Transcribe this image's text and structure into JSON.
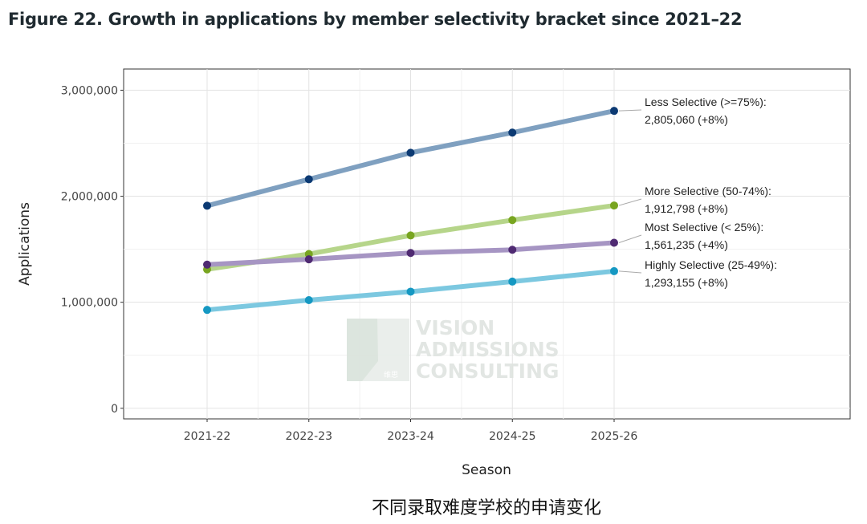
{
  "figure_title": "Figure 22. Growth in applications by member selectivity bracket since 2021–22",
  "caption": "不同录取难度学校的申请变化",
  "watermark": {
    "lines": [
      "VISION",
      "ADMISSIONS",
      "CONSULTING"
    ],
    "logo_text": "维思"
  },
  "chart_data": {
    "type": "line",
    "xlabel": "Season",
    "ylabel": "Applications",
    "categories": [
      "2021-22",
      "2022-23",
      "2023-24",
      "2024-25",
      "2025-26"
    ],
    "ylim": [
      -100000,
      3200000
    ],
    "yticks": [
      0,
      1000000,
      2000000,
      3000000
    ],
    "ytick_labels": [
      "0",
      "1,000,000",
      "2,000,000",
      "3,000,000"
    ],
    "grid": true,
    "series": [
      {
        "name": "Less Selective (>=75%)",
        "values": [
          1910000,
          2160000,
          2410000,
          2600000,
          2805060
        ],
        "line_color": "#7fa0c0",
        "point_color": "#0c3a73",
        "label_lines": [
          "Less Selective (>=75%):",
          "2,805,060 (+8%)"
        ]
      },
      {
        "name": "More Selective (50-74%)",
        "values": [
          1310000,
          1455000,
          1630000,
          1775000,
          1912798
        ],
        "line_color": "#b6d58a",
        "point_color": "#78a520",
        "label_lines": [
          "More Selective (50-74%):",
          "1,912,798 (+8%)"
        ]
      },
      {
        "name": "Most Selective (< 25%)",
        "values": [
          1355000,
          1405000,
          1465000,
          1495000,
          1561235
        ],
        "line_color": "#a695c3",
        "point_color": "#4f2a72",
        "label_lines": [
          "Most Selective (< 25%):",
          "1,561,235 (+4%)"
        ]
      },
      {
        "name": "Highly Selective (25-49%)",
        "values": [
          928000,
          1020000,
          1100000,
          1195000,
          1293155
        ],
        "line_color": "#7cc8e0",
        "point_color": "#1598c2",
        "label_lines": [
          "Highly Selective (25-49%):",
          "1,293,155 (+8%)"
        ]
      }
    ]
  }
}
